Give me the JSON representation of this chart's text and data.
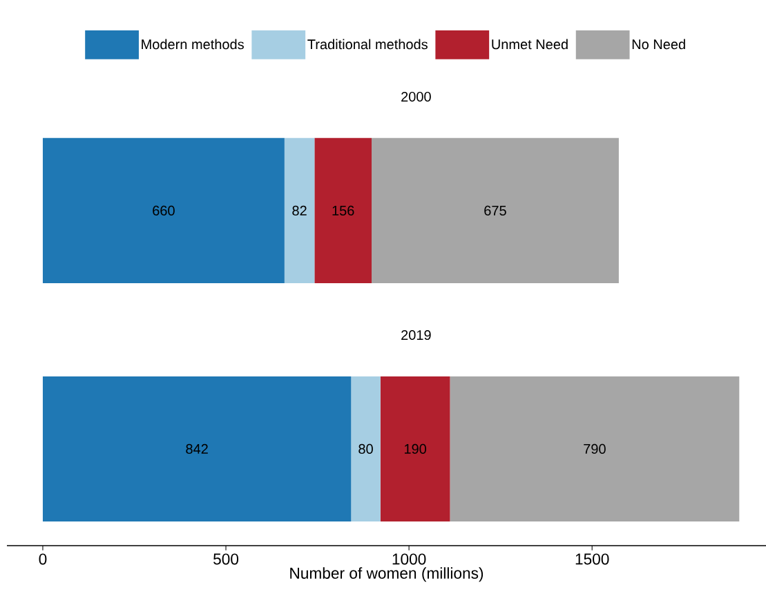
{
  "chart_data": {
    "type": "bar",
    "orientation": "horizontal",
    "stacked": true,
    "data_labels": true,
    "legend": "top",
    "xlabel": "Number of women (millions)",
    "categories": [
      "2000",
      "2019"
    ],
    "series": [
      {
        "name": "Modern methods",
        "color": "#1f78b4",
        "values": [
          660,
          842
        ]
      },
      {
        "name": "Traditional methods",
        "color": "#a6cee3",
        "values": [
          82,
          80
        ]
      },
      {
        "name": "Unmet Need",
        "color": "#b2202e",
        "values": [
          156,
          190
        ]
      },
      {
        "name": "No Need",
        "color": "#a6a6a6",
        "values": [
          675,
          790
        ]
      }
    ],
    "xlim": [
      -98,
      1975
    ],
    "xticks": [
      0,
      500,
      1000,
      1500
    ]
  }
}
